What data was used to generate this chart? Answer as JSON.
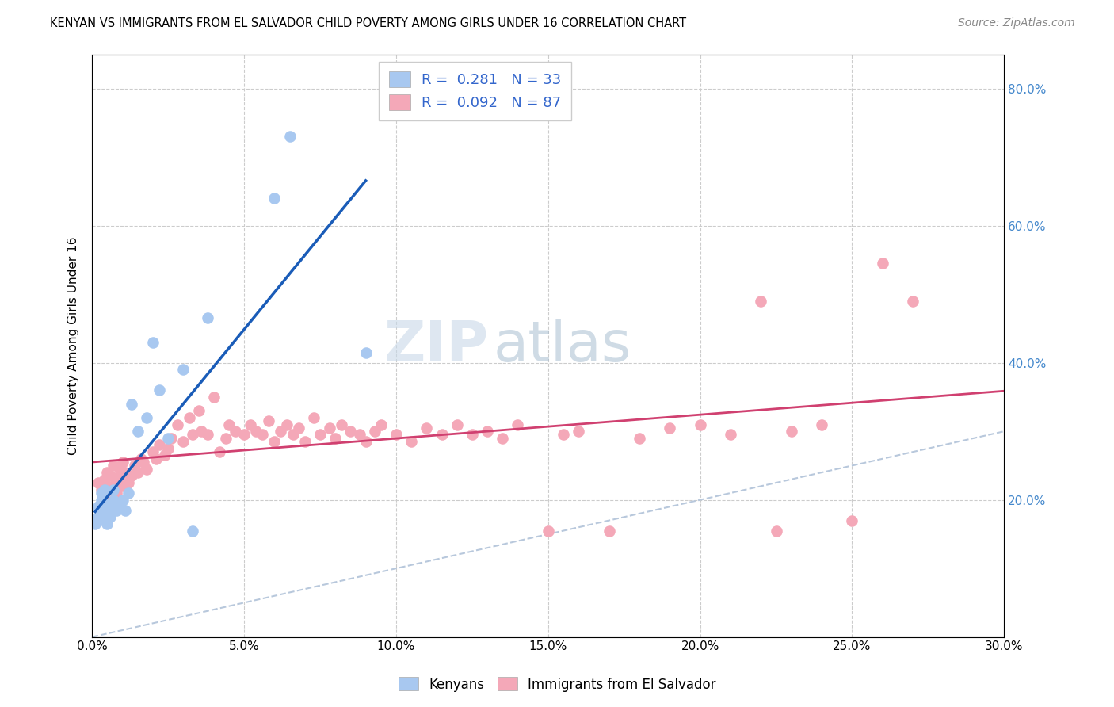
{
  "title": "KENYAN VS IMMIGRANTS FROM EL SALVADOR CHILD POVERTY AMONG GIRLS UNDER 16 CORRELATION CHART",
  "source": "Source: ZipAtlas.com",
  "ylabel": "Child Poverty Among Girls Under 16",
  "xlim": [
    0.0,
    0.3
  ],
  "ylim": [
    0.0,
    0.85
  ],
  "kenyan_R": 0.281,
  "kenyan_N": 33,
  "salvador_R": 0.092,
  "salvador_N": 87,
  "kenyan_color": "#a8c8f0",
  "salvador_color": "#f4a8b8",
  "kenyan_line_color": "#1a5cb8",
  "salvador_line_color": "#d04070",
  "diagonal_color": "#b8c8dc",
  "watermark_zip": "ZIP",
  "watermark_atlas": "atlas",
  "background_color": "#ffffff",
  "kenyan_x": [
    0.001,
    0.002,
    0.002,
    0.003,
    0.003,
    0.003,
    0.004,
    0.004,
    0.004,
    0.005,
    0.005,
    0.006,
    0.006,
    0.007,
    0.007,
    0.008,
    0.008,
    0.009,
    0.01,
    0.011,
    0.012,
    0.013,
    0.015,
    0.018,
    0.02,
    0.022,
    0.025,
    0.03,
    0.033,
    0.038,
    0.06,
    0.065,
    0.09
  ],
  "kenyan_y": [
    0.165,
    0.19,
    0.175,
    0.2,
    0.185,
    0.21,
    0.17,
    0.195,
    0.215,
    0.185,
    0.165,
    0.19,
    0.175,
    0.2,
    0.215,
    0.185,
    0.195,
    0.19,
    0.2,
    0.185,
    0.21,
    0.34,
    0.3,
    0.32,
    0.43,
    0.36,
    0.29,
    0.39,
    0.155,
    0.465,
    0.64,
    0.73,
    0.415
  ],
  "salvador_x": [
    0.002,
    0.003,
    0.004,
    0.004,
    0.005,
    0.005,
    0.006,
    0.006,
    0.007,
    0.007,
    0.008,
    0.008,
    0.009,
    0.009,
    0.01,
    0.01,
    0.011,
    0.012,
    0.013,
    0.014,
    0.015,
    0.016,
    0.017,
    0.018,
    0.02,
    0.021,
    0.022,
    0.024,
    0.025,
    0.026,
    0.028,
    0.03,
    0.032,
    0.033,
    0.035,
    0.036,
    0.038,
    0.04,
    0.042,
    0.044,
    0.045,
    0.047,
    0.05,
    0.052,
    0.054,
    0.056,
    0.058,
    0.06,
    0.062,
    0.064,
    0.066,
    0.068,
    0.07,
    0.073,
    0.075,
    0.078,
    0.08,
    0.082,
    0.085,
    0.088,
    0.09,
    0.093,
    0.095,
    0.1,
    0.105,
    0.11,
    0.115,
    0.12,
    0.125,
    0.13,
    0.135,
    0.14,
    0.15,
    0.155,
    0.16,
    0.17,
    0.18,
    0.19,
    0.2,
    0.21,
    0.22,
    0.225,
    0.23,
    0.24,
    0.25,
    0.26,
    0.27
  ],
  "salvador_y": [
    0.225,
    0.215,
    0.22,
    0.23,
    0.2,
    0.24,
    0.215,
    0.235,
    0.22,
    0.25,
    0.225,
    0.21,
    0.235,
    0.245,
    0.22,
    0.255,
    0.24,
    0.225,
    0.235,
    0.25,
    0.24,
    0.26,
    0.255,
    0.245,
    0.27,
    0.26,
    0.28,
    0.265,
    0.275,
    0.29,
    0.31,
    0.285,
    0.32,
    0.295,
    0.33,
    0.3,
    0.295,
    0.35,
    0.27,
    0.29,
    0.31,
    0.3,
    0.295,
    0.31,
    0.3,
    0.295,
    0.315,
    0.285,
    0.3,
    0.31,
    0.295,
    0.305,
    0.285,
    0.32,
    0.295,
    0.305,
    0.29,
    0.31,
    0.3,
    0.295,
    0.285,
    0.3,
    0.31,
    0.295,
    0.285,
    0.305,
    0.295,
    0.31,
    0.295,
    0.3,
    0.29,
    0.31,
    0.155,
    0.295,
    0.3,
    0.155,
    0.29,
    0.305,
    0.31,
    0.295,
    0.49,
    0.155,
    0.3,
    0.31,
    0.17,
    0.545,
    0.49
  ]
}
